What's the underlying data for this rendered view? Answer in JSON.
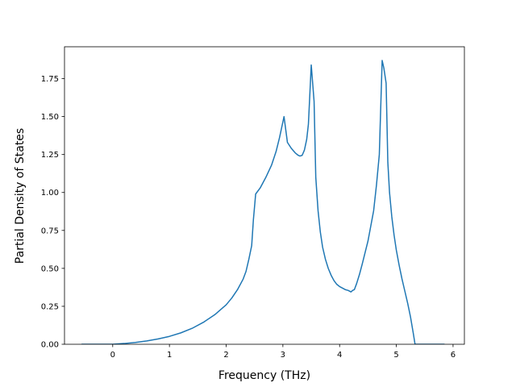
{
  "chart_data": {
    "type": "line",
    "title": "",
    "xlabel": "Frequency (THz)",
    "ylabel": "Partial Density of States",
    "xlim": [
      -0.85,
      6.2
    ],
    "ylim": [
      0.0,
      1.96
    ],
    "xticks": [
      0,
      1,
      2,
      3,
      4,
      5,
      6
    ],
    "xtick_labels": [
      "0",
      "1",
      "2",
      "3",
      "4",
      "5",
      "6"
    ],
    "yticks": [
      0.0,
      0.25,
      0.5,
      0.75,
      1.0,
      1.25,
      1.5,
      1.75
    ],
    "ytick_labels": [
      "0.00",
      "0.25",
      "0.50",
      "0.75",
      "1.00",
      "1.25",
      "1.50",
      "1.75"
    ],
    "grid": false,
    "legend": "none",
    "series": [
      {
        "color": "#1f77b4",
        "x": [
          -0.55,
          -0.2,
          0.0,
          0.2,
          0.4,
          0.6,
          0.8,
          1.0,
          1.2,
          1.4,
          1.6,
          1.8,
          2.0,
          2.1,
          2.2,
          2.3,
          2.35,
          2.4,
          2.45,
          2.48,
          2.52,
          2.6,
          2.7,
          2.8,
          2.88,
          2.94,
          2.98,
          3.02,
          3.08,
          3.15,
          3.22,
          3.27,
          3.3,
          3.34,
          3.38,
          3.42,
          3.45,
          3.5,
          3.55,
          3.58,
          3.62,
          3.66,
          3.7,
          3.75,
          3.8,
          3.85,
          3.9,
          3.95,
          4.0,
          4.05,
          4.1,
          4.15,
          4.2,
          4.23,
          4.26,
          4.3,
          4.35,
          4.4,
          4.5,
          4.6,
          4.65,
          4.7,
          4.72,
          4.75,
          4.78,
          4.82,
          4.85,
          4.88,
          4.92,
          4.96,
          5.0,
          5.05,
          5.1,
          5.15,
          5.2,
          5.25,
          5.3,
          5.33,
          5.4,
          5.5,
          5.6,
          5.7,
          5.85
        ],
        "y": [
          0.0,
          0.0,
          0.0,
          0.005,
          0.012,
          0.022,
          0.035,
          0.052,
          0.075,
          0.105,
          0.145,
          0.195,
          0.26,
          0.305,
          0.36,
          0.43,
          0.48,
          0.56,
          0.65,
          0.82,
          0.99,
          1.03,
          1.1,
          1.18,
          1.27,
          1.36,
          1.43,
          1.5,
          1.33,
          1.29,
          1.26,
          1.245,
          1.24,
          1.245,
          1.28,
          1.35,
          1.45,
          1.84,
          1.6,
          1.1,
          0.88,
          0.74,
          0.64,
          0.56,
          0.5,
          0.455,
          0.42,
          0.395,
          0.38,
          0.37,
          0.36,
          0.355,
          0.345,
          0.355,
          0.36,
          0.4,
          0.46,
          0.53,
          0.68,
          0.88,
          1.05,
          1.25,
          1.5,
          1.87,
          1.82,
          1.72,
          1.2,
          1.0,
          0.84,
          0.72,
          0.62,
          0.52,
          0.43,
          0.35,
          0.27,
          0.18,
          0.07,
          0.0,
          0.0,
          0.0,
          0.0,
          0.0,
          0.0
        ]
      }
    ]
  }
}
